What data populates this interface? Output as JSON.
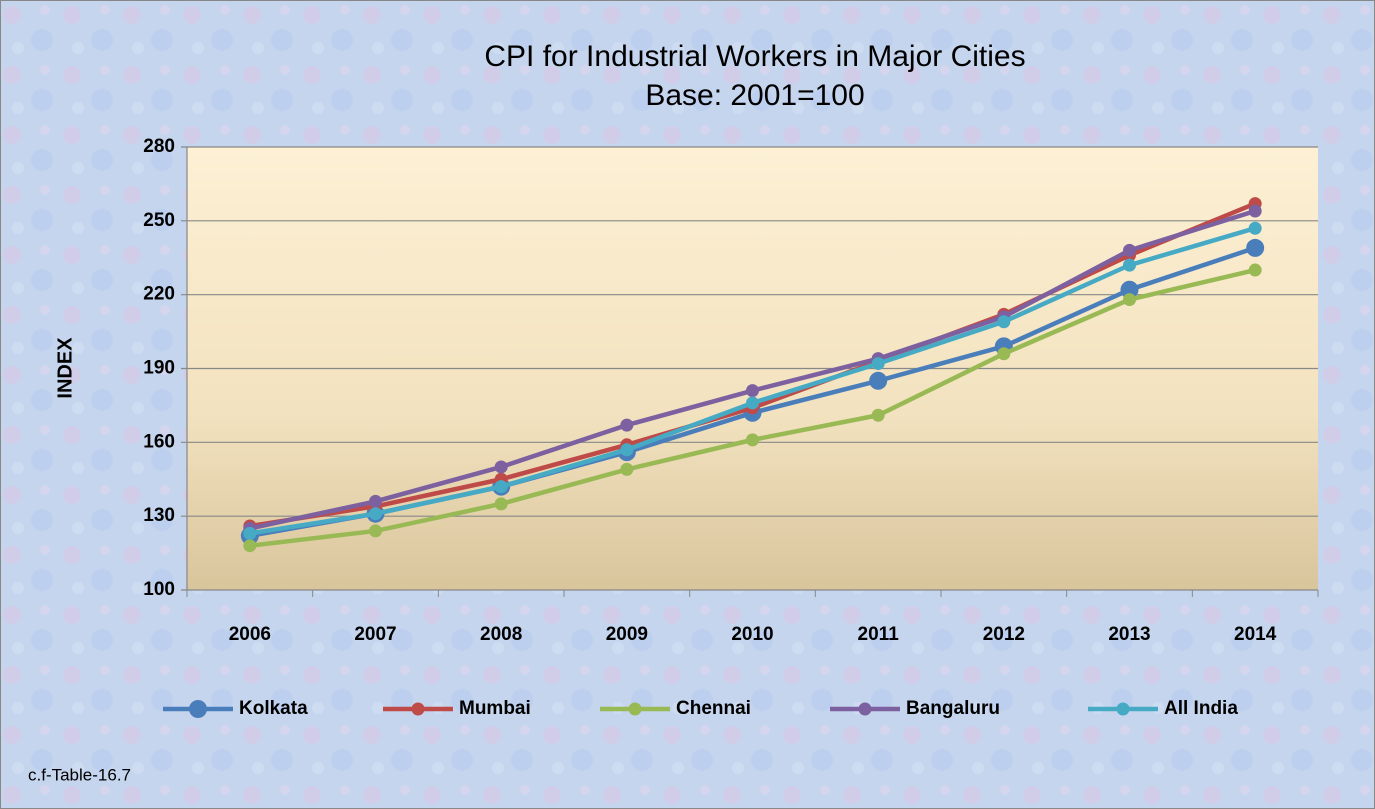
{
  "chart_data": {
    "type": "line",
    "title": "CPI for Industrial Workers in Major Cities",
    "subtitle": "Base: 2001=100",
    "y_label": "INDEX",
    "note": "c.f-Table-16.7",
    "categories": [
      "2006",
      "2007",
      "2008",
      "2009",
      "2010",
      "2011",
      "2012",
      "2013",
      "2014"
    ],
    "series": [
      {
        "name": "Kolkata",
        "color": "#4a7ebb",
        "values": [
          122,
          131,
          142,
          156,
          172,
          185,
          199,
          222,
          239
        ]
      },
      {
        "name": "Mumbai",
        "color": "#be4b48",
        "values": [
          126,
          134,
          145,
          159,
          174,
          193,
          212,
          236,
          257
        ]
      },
      {
        "name": "Chennai",
        "color": "#98b954",
        "values": [
          118,
          124,
          135,
          149,
          161,
          171,
          196,
          218,
          230
        ]
      },
      {
        "name": "Bangaluru",
        "color": "#7d60a0",
        "values": [
          125,
          136,
          150,
          167,
          181,
          194,
          211,
          238,
          254
        ]
      },
      {
        "name": "All India",
        "color": "#46aac5",
        "values": [
          123,
          131,
          142,
          157,
          176,
          192,
          209,
          232,
          247
        ]
      }
    ],
    "ylim": [
      100,
      280
    ],
    "yticks": [
      100,
      130,
      160,
      190,
      220,
      250,
      280
    ],
    "grid": true,
    "legend": "bottom"
  }
}
